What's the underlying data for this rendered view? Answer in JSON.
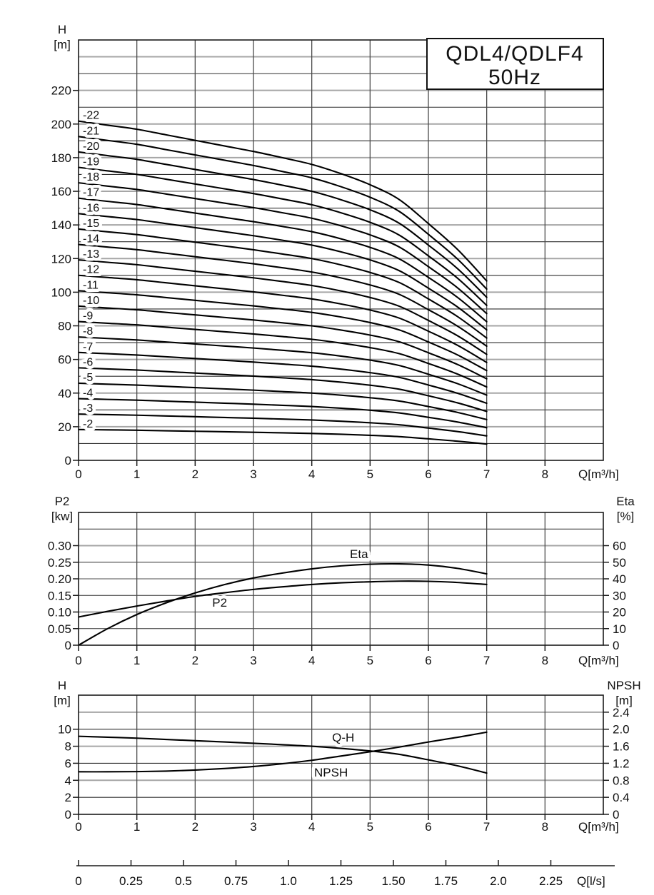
{
  "title_box": {
    "line1": "QDL4/QDLF4",
    "line2": "50Hz"
  },
  "chart_data": [
    {
      "id": "head_capacity",
      "type": "line",
      "xlabel": "Q[m³/h]",
      "ylabel": "H",
      "ylabel_unit": "[m]",
      "xlim": [
        0,
        9
      ],
      "ylim": [
        0,
        250
      ],
      "grid": "on",
      "grid_step_y": 10,
      "x_ticks": [
        "0",
        "1",
        "2",
        "3",
        "4",
        "5",
        "6",
        "7",
        "8"
      ],
      "y_ticks": [
        "0",
        "20",
        "40",
        "60",
        "80",
        "100",
        "120",
        "140",
        "160",
        "180",
        "200",
        "220"
      ],
      "q_samples": [
        0,
        0.5,
        1,
        1.5,
        2,
        2.5,
        3,
        3.5,
        4,
        4.5,
        5,
        5.5,
        6,
        6.5,
        7
      ],
      "head_per_stage": [
        9.17,
        9.06,
        8.95,
        8.8,
        8.65,
        8.5,
        8.35,
        8.18,
        8.0,
        7.75,
        7.45,
        7.05,
        6.4,
        5.7,
        4.85
      ],
      "curves": [
        {
          "label": "-22",
          "stages": 22
        },
        {
          "label": "-21",
          "stages": 21
        },
        {
          "label": "-20",
          "stages": 20
        },
        {
          "label": "-19",
          "stages": 19
        },
        {
          "label": "-18",
          "stages": 18
        },
        {
          "label": "-17",
          "stages": 17
        },
        {
          "label": "-16",
          "stages": 16
        },
        {
          "label": "-15",
          "stages": 15
        },
        {
          "label": "-14",
          "stages": 14
        },
        {
          "label": "-13",
          "stages": 13
        },
        {
          "label": "-12",
          "stages": 12
        },
        {
          "label": "-11",
          "stages": 11
        },
        {
          "label": "-10",
          "stages": 10
        },
        {
          "label": "-9",
          "stages": 9
        },
        {
          "label": "-8",
          "stages": 8
        },
        {
          "label": "-7",
          "stages": 7
        },
        {
          "label": "-6",
          "stages": 6
        },
        {
          "label": "-5",
          "stages": 5
        },
        {
          "label": "-4",
          "stages": 4
        },
        {
          "label": "-3",
          "stages": 3
        },
        {
          "label": "-2",
          "stages": 2
        }
      ]
    },
    {
      "id": "power_efficiency",
      "type": "line",
      "xlabel": "Q[m³/h]",
      "ylabel_left": "P2",
      "ylabel_left_unit": "[kw]",
      "ylabel_right": "Eta",
      "ylabel_right_unit": "[%]",
      "xlim": [
        0,
        9
      ],
      "ylim_left": [
        0,
        0.4
      ],
      "ylim_right": [
        0,
        80
      ],
      "grid": "on",
      "x_ticks": [
        "0",
        "1",
        "2",
        "3",
        "4",
        "5",
        "6",
        "7",
        "8"
      ],
      "y_ticks_left": [
        "0.30",
        "0.25",
        "0.20",
        "0.15",
        "0.10",
        "0.05",
        "0"
      ],
      "y_ticks_right": [
        "60",
        "50",
        "40",
        "30",
        "20",
        "10",
        "0"
      ],
      "series": [
        {
          "name": "P2",
          "axis": "left",
          "x": [
            0,
            0.5,
            1,
            1.5,
            2,
            2.5,
            3,
            3.5,
            4,
            4.5,
            5,
            5.5,
            6,
            6.5,
            7
          ],
          "values": [
            0.085,
            0.102,
            0.118,
            0.133,
            0.147,
            0.158,
            0.168,
            0.176,
            0.183,
            0.188,
            0.191,
            0.193,
            0.1925,
            0.189,
            0.183
          ],
          "label_at": {
            "q": 2.42,
            "v": 0.129
          }
        },
        {
          "name": "Eta",
          "axis": "right",
          "x": [
            0,
            0.5,
            1,
            1.5,
            2,
            2.5,
            3,
            3.5,
            4,
            4.5,
            5,
            5.5,
            6,
            6.5,
            7
          ],
          "values": [
            0,
            10,
            18.5,
            25.5,
            31.5,
            36.5,
            40.5,
            43.5,
            46.0,
            47.8,
            48.8,
            49.0,
            48.3,
            46.3,
            43.0
          ],
          "label_at": {
            "q": 4.81,
            "v": 55
          }
        }
      ]
    },
    {
      "id": "qh_npsh",
      "type": "line",
      "xlabel": "Q[m³/h]",
      "ylabel_left": "H",
      "ylabel_left_unit": "[m]",
      "ylabel_right": "NPSH",
      "ylabel_right_unit": "[m]",
      "xlim": [
        0,
        9
      ],
      "ylim_left": [
        0,
        14
      ],
      "ylim_right": [
        0,
        2.8
      ],
      "grid": "on",
      "x_ticks": [
        "0",
        "1",
        "2",
        "3",
        "4",
        "5",
        "6",
        "7",
        "8"
      ],
      "y_ticks_left": [
        "10",
        "8",
        "6",
        "4",
        "2",
        "0"
      ],
      "y_ticks_right": [
        "2.4",
        "2.0",
        "1.6",
        "1.2",
        "0.8",
        "0.4",
        "0"
      ],
      "series": [
        {
          "name": "Q-H",
          "axis": "left",
          "x": [
            0,
            0.5,
            1,
            1.5,
            2,
            2.5,
            3,
            3.5,
            4,
            4.5,
            5,
            5.5,
            6,
            6.5,
            7
          ],
          "values": [
            9.17,
            9.06,
            8.95,
            8.8,
            8.65,
            8.5,
            8.35,
            8.18,
            8.0,
            7.75,
            7.45,
            7.05,
            6.4,
            5.7,
            4.85
          ],
          "label_at": {
            "q": 4.54,
            "v": 9.05
          }
        },
        {
          "name": "NPSH",
          "axis": "right",
          "x": [
            0,
            0.5,
            1,
            1.5,
            2,
            2.5,
            3,
            3.5,
            4,
            4.5,
            5,
            5.5,
            6,
            6.5,
            7
          ],
          "values": [
            1.0,
            1.0,
            1.004,
            1.016,
            1.04,
            1.076,
            1.124,
            1.19,
            1.27,
            1.37,
            1.47,
            1.58,
            1.7,
            1.81,
            1.93
          ],
          "label_at": {
            "q": 4.33,
            "v": 0.99
          }
        }
      ]
    }
  ],
  "flow_axis_ls": {
    "label": "Q[l/s]",
    "ticks": [
      "0",
      "0.25",
      "0.5",
      "0.75",
      "1.0",
      "1.25",
      "1.50",
      "1.75",
      "2.0",
      "2.25"
    ]
  }
}
